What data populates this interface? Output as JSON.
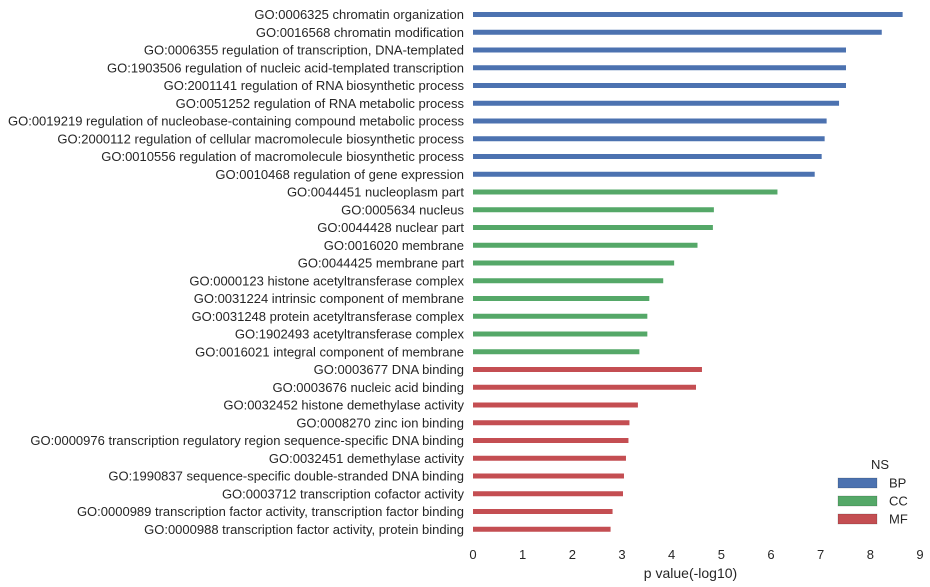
{
  "chart_data": {
    "type": "bar",
    "orientation": "horizontal",
    "xlabel": "p value(-log10)",
    "xlim": [
      0,
      9
    ],
    "xticks": [
      "0",
      "1",
      "2",
      "3",
      "4",
      "5",
      "6",
      "7",
      "8",
      "9"
    ],
    "grid": false,
    "legend": {
      "title": "NS",
      "position": "bottom-right",
      "entries": [
        {
          "label": "BP",
          "color": "#4C72B0"
        },
        {
          "label": "CC",
          "color": "#55A868"
        },
        {
          "label": "MF",
          "color": "#C44E52"
        }
      ]
    },
    "bars": [
      {
        "label": "GO:0006325 chromatin organization",
        "value": 8.65,
        "ns": "BP"
      },
      {
        "label": "GO:0016568 chromatin modification",
        "value": 8.23,
        "ns": "BP"
      },
      {
        "label": "GO:0006355 regulation of transcription, DNA-templated",
        "value": 7.51,
        "ns": "BP"
      },
      {
        "label": "GO:1903506 regulation of nucleic acid-templated transcription",
        "value": 7.51,
        "ns": "BP"
      },
      {
        "label": "GO:2001141 regulation of RNA biosynthetic process",
        "value": 7.51,
        "ns": "BP"
      },
      {
        "label": "GO:0051252 regulation of RNA metabolic process",
        "value": 7.37,
        "ns": "BP"
      },
      {
        "label": "GO:0019219 regulation of nucleobase-containing compound metabolic process",
        "value": 7.12,
        "ns": "BP"
      },
      {
        "label": "GO:2000112 regulation of cellular macromolecule biosynthetic process",
        "value": 7.08,
        "ns": "BP"
      },
      {
        "label": "GO:0010556 regulation of macromolecule biosynthetic process",
        "value": 7.02,
        "ns": "BP"
      },
      {
        "label": "GO:0010468 regulation of gene expression",
        "value": 6.88,
        "ns": "BP"
      },
      {
        "label": "GO:0044451 nucleoplasm part",
        "value": 6.13,
        "ns": "CC"
      },
      {
        "label": "GO:0005634 nucleus",
        "value": 4.85,
        "ns": "CC"
      },
      {
        "label": "GO:0044428 nuclear part",
        "value": 4.83,
        "ns": "CC"
      },
      {
        "label": "GO:0016020 membrane",
        "value": 4.52,
        "ns": "CC"
      },
      {
        "label": "GO:0044425 membrane part",
        "value": 4.05,
        "ns": "CC"
      },
      {
        "label": "GO:0000123 histone acetyltransferase complex",
        "value": 3.83,
        "ns": "CC"
      },
      {
        "label": "GO:0031224 intrinsic component of membrane",
        "value": 3.55,
        "ns": "CC"
      },
      {
        "label": "GO:0031248 protein acetyltransferase complex",
        "value": 3.51,
        "ns": "CC"
      },
      {
        "label": "GO:1902493 acetyltransferase complex",
        "value": 3.51,
        "ns": "CC"
      },
      {
        "label": "GO:0016021 integral component of membrane",
        "value": 3.35,
        "ns": "CC"
      },
      {
        "label": "GO:0003677 DNA binding",
        "value": 4.61,
        "ns": "MF"
      },
      {
        "label": "GO:0003676 nucleic acid binding",
        "value": 4.49,
        "ns": "MF"
      },
      {
        "label": "GO:0032452 histone demethylase activity",
        "value": 3.32,
        "ns": "MF"
      },
      {
        "label": "GO:0008270 zinc ion binding",
        "value": 3.15,
        "ns": "MF"
      },
      {
        "label": "GO:0000976 transcription regulatory region sequence-specific DNA binding",
        "value": 3.13,
        "ns": "MF"
      },
      {
        "label": "GO:0032451 demethylase activity",
        "value": 3.08,
        "ns": "MF"
      },
      {
        "label": "GO:1990837 sequence-specific double-stranded DNA binding",
        "value": 3.04,
        "ns": "MF"
      },
      {
        "label": "GO:0003712 transcription cofactor activity",
        "value": 3.02,
        "ns": "MF"
      },
      {
        "label": "GO:0000989 transcription factor activity, transcription factor binding",
        "value": 2.81,
        "ns": "MF"
      },
      {
        "label": "GO:0000988 transcription factor activity, protein binding",
        "value": 2.77,
        "ns": "MF"
      }
    ]
  }
}
